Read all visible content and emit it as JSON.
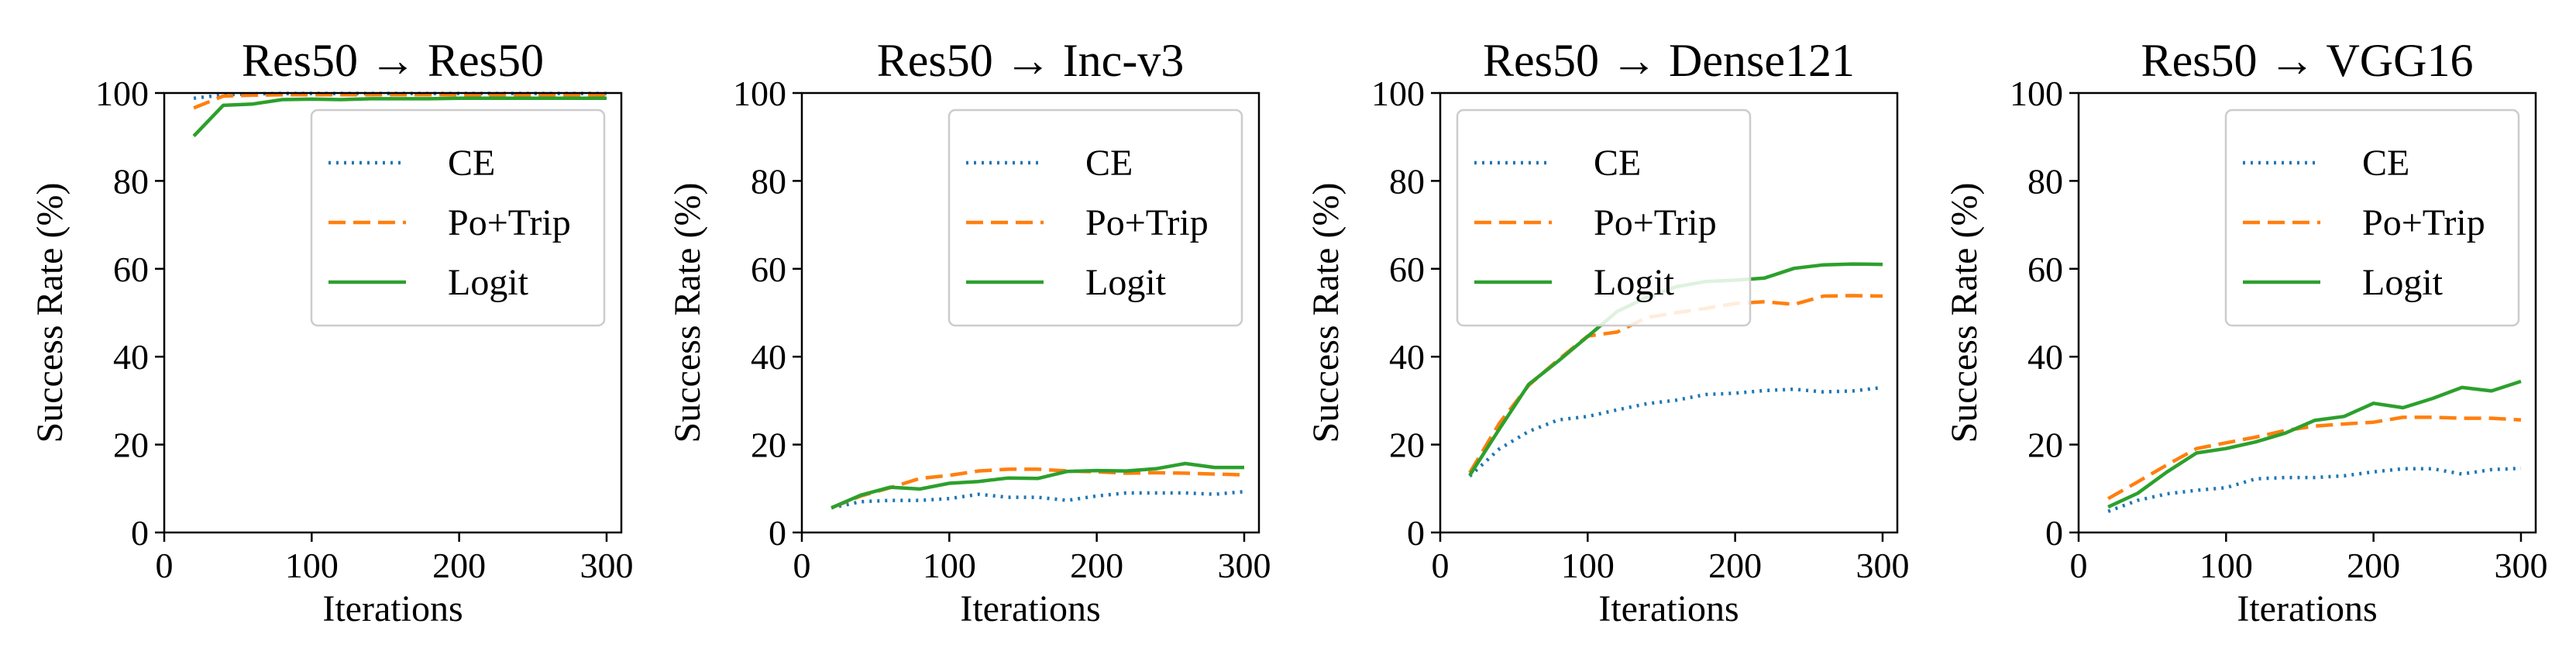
{
  "colors": {
    "ce": "#1f77b4",
    "potrip": "#ff7f0e",
    "logit": "#2ca02c",
    "axis": "#000000",
    "legend_border": "#cccccc"
  },
  "chart_data": [
    {
      "type": "line",
      "title": "Res50 → Res50",
      "xlabel": "Iterations",
      "ylabel": "Success Rate (%)",
      "xlim": [
        0,
        310
      ],
      "ylim": [
        0,
        100
      ],
      "xticks": [
        "0",
        "100",
        "200",
        "300"
      ],
      "yticks": [
        "0",
        "20",
        "40",
        "60",
        "80",
        "100"
      ],
      "grid": false,
      "legend_position": "upper-right",
      "x": [
        20,
        40,
        60,
        80,
        100,
        120,
        140,
        160,
        180,
        200,
        220,
        240,
        260,
        280,
        300
      ],
      "series": [
        {
          "name": "CE",
          "style": "dotted",
          "values": [
            98.8,
            99.6,
            99.8,
            99.9,
            99.9,
            99.9,
            99.9,
            99.9,
            99.9,
            99.9,
            99.9,
            99.9,
            99.9,
            99.9,
            99.9
          ]
        },
        {
          "name": "Po+Trip",
          "style": "dashed",
          "values": [
            96.6,
            99.3,
            99.5,
            99.6,
            99.6,
            99.6,
            99.6,
            99.6,
            99.6,
            99.6,
            99.6,
            99.6,
            99.6,
            99.6,
            99.6
          ]
        },
        {
          "name": "Logit",
          "style": "solid",
          "values": [
            90.2,
            97.2,
            97.5,
            98.5,
            98.6,
            98.5,
            98.7,
            98.7,
            98.7,
            98.8,
            98.8,
            98.8,
            98.8,
            98.8,
            98.8
          ]
        }
      ]
    },
    {
      "type": "line",
      "title": "Res50 → Inc-v3",
      "xlabel": "Iterations",
      "ylabel": "Success Rate (%)",
      "xlim": [
        0,
        310
      ],
      "ylim": [
        0,
        100
      ],
      "xticks": [
        "0",
        "100",
        "200",
        "300"
      ],
      "yticks": [
        "0",
        "20",
        "40",
        "60",
        "80",
        "100"
      ],
      "grid": false,
      "legend_position": "upper-right",
      "x": [
        20,
        40,
        60,
        80,
        100,
        120,
        140,
        160,
        180,
        200,
        220,
        240,
        260,
        280,
        300
      ],
      "series": [
        {
          "name": "CE",
          "style": "dotted",
          "values": [
            5.6,
            7.0,
            7.3,
            7.3,
            7.7,
            8.7,
            8.0,
            8.0,
            7.3,
            8.3,
            9.0,
            9.0,
            9.0,
            8.7,
            9.3
          ]
        },
        {
          "name": "Po+Trip",
          "style": "dashed",
          "values": [
            5.6,
            8.3,
            10.2,
            12.3,
            13.0,
            14.0,
            14.4,
            14.4,
            14.0,
            13.8,
            13.5,
            13.6,
            13.5,
            13.3,
            13.1
          ]
        },
        {
          "name": "Logit",
          "style": "solid",
          "values": [
            5.6,
            8.5,
            10.3,
            9.9,
            11.2,
            11.6,
            12.4,
            12.3,
            13.9,
            14.1,
            14.0,
            14.5,
            15.7,
            14.8,
            14.8
          ]
        }
      ]
    },
    {
      "type": "line",
      "title": "Res50 → Dense121",
      "xlabel": "Iterations",
      "ylabel": "Success Rate (%)",
      "xlim": [
        0,
        310
      ],
      "ylim": [
        0,
        100
      ],
      "xticks": [
        "0",
        "100",
        "200",
        "300"
      ],
      "yticks": [
        "0",
        "20",
        "40",
        "60",
        "80",
        "100"
      ],
      "grid": false,
      "legend_position": "upper-left",
      "x": [
        20,
        40,
        60,
        80,
        100,
        120,
        140,
        160,
        180,
        200,
        220,
        240,
        260,
        280,
        300
      ],
      "series": [
        {
          "name": "CE",
          "style": "dotted",
          "values": [
            12.8,
            19.0,
            23.0,
            25.6,
            26.4,
            27.9,
            29.3,
            30.1,
            31.4,
            31.7,
            32.3,
            32.6,
            32.0,
            32.2,
            33.0
          ]
        },
        {
          "name": "Po+Trip",
          "style": "dashed",
          "values": [
            13.6,
            24.8,
            33.5,
            39.3,
            44.7,
            45.6,
            48.9,
            50.0,
            51.0,
            52.1,
            52.5,
            51.9,
            53.8,
            53.9,
            53.8
          ]
        },
        {
          "name": "Logit",
          "style": "solid",
          "values": [
            13.0,
            23.5,
            33.7,
            39.0,
            44.6,
            50.3,
            53.5,
            55.9,
            57.1,
            57.4,
            57.9,
            60.1,
            60.9,
            61.1,
            61.0
          ]
        }
      ]
    },
    {
      "type": "line",
      "title": "Res50 → VGG16",
      "xlabel": "Iterations",
      "ylabel": "Success Rate (%)",
      "xlim": [
        0,
        310
      ],
      "ylim": [
        0,
        100
      ],
      "xticks": [
        "0",
        "100",
        "200",
        "300"
      ],
      "yticks": [
        "0",
        "20",
        "40",
        "60",
        "80",
        "100"
      ],
      "grid": false,
      "legend_position": "upper-right",
      "x": [
        20,
        40,
        60,
        80,
        100,
        120,
        140,
        160,
        180,
        200,
        220,
        240,
        260,
        280,
        300
      ],
      "series": [
        {
          "name": "CE",
          "style": "dotted",
          "values": [
            4.8,
            7.3,
            8.8,
            9.6,
            10.2,
            12.2,
            12.5,
            12.5,
            12.9,
            13.8,
            14.5,
            14.5,
            13.3,
            14.3,
            14.6
          ]
        },
        {
          "name": "Po+Trip",
          "style": "dashed",
          "values": [
            7.7,
            11.5,
            15.4,
            19.1,
            20.4,
            21.7,
            23.2,
            24.2,
            24.7,
            25.1,
            26.2,
            26.2,
            26.0,
            26.0,
            25.6
          ]
        },
        {
          "name": "Logit",
          "style": "solid",
          "values": [
            5.8,
            8.9,
            13.8,
            18.1,
            19.1,
            20.6,
            22.6,
            25.5,
            26.4,
            29.4,
            28.4,
            30.5,
            33.0,
            32.2,
            34.4
          ]
        }
      ]
    }
  ]
}
